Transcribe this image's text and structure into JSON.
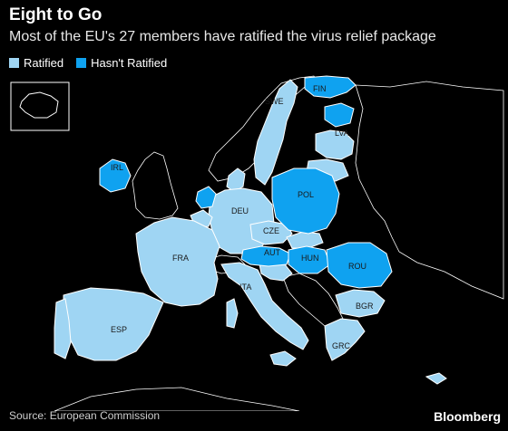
{
  "header": {
    "title": "Eight to Go",
    "subtitle": "Most of the EU's 27 members have ratified the virus relief package"
  },
  "legend": {
    "items": [
      {
        "label": "Ratified",
        "color": "#9fd5f3"
      },
      {
        "label": "Hasn't Ratified",
        "color": "#0fa2f0"
      }
    ]
  },
  "map": {
    "labels": {
      "swe": "SWE",
      "fin": "FIN",
      "lva": "LVA",
      "irl": "IRL",
      "deu": "DEU",
      "pol": "POL",
      "cze": "CZE",
      "fra": "FRA",
      "aut": "AUT",
      "hun": "HUN",
      "rou": "ROU",
      "ita": "ITA",
      "bgr": "BGR",
      "esp": "ESP",
      "grc": "GRC"
    },
    "status": {
      "ratified": [
        "SWE",
        "LVA",
        "DEU",
        "CZE",
        "FRA",
        "ITA",
        "BGR",
        "ESP",
        "GRC"
      ],
      "not_ratified": [
        "FIN",
        "IRL",
        "POL",
        "AUT",
        "HUN",
        "ROU"
      ]
    },
    "colors": {
      "ratified": "#9fd5f3",
      "not_ratified": "#0fa2f0",
      "non_eu_fill": "#000000",
      "border": "#ffffff"
    }
  },
  "footer": {
    "source": "Source: European Commission",
    "brand": "Bloomberg"
  }
}
